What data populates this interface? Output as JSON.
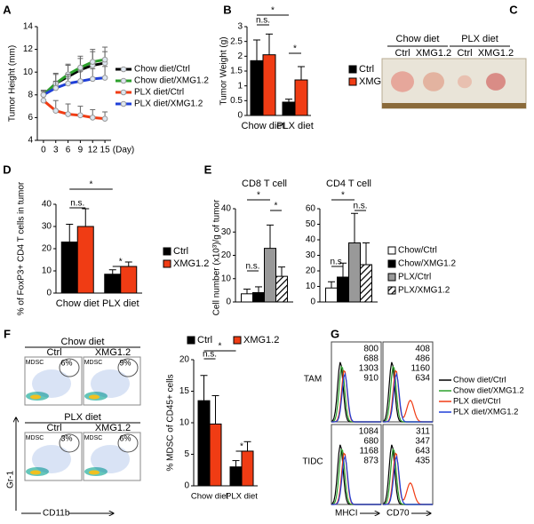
{
  "chart_data": [
    {
      "type": "line",
      "label": "A",
      "ylabel": "Tumor Height (mm)",
      "xlabel": "(Day)",
      "x": [
        0,
        3,
        6,
        9,
        12,
        15
      ],
      "xlim": [
        -1.5,
        16.5
      ],
      "xticks": [
        0,
        3,
        6,
        9,
        12,
        15
      ],
      "ylim": [
        4,
        14
      ],
      "yticks": [
        4,
        6,
        8,
        10,
        12,
        14
      ],
      "series": [
        {
          "name": "Chow diet/Ctrl",
          "color": "#000000",
          "values": [
            8.0,
            9.0,
            9.6,
            10.2,
            10.6,
            10.8
          ],
          "errors": [
            0.3,
            0.9,
            1.0,
            1.0,
            1.2,
            1.0
          ]
        },
        {
          "name": "Chow diet/XMG1.2",
          "color": "#2ca02c",
          "values": [
            8.0,
            9.0,
            9.8,
            10.4,
            10.9,
            11.1
          ],
          "errors": [
            0.4,
            0.8,
            0.9,
            1.0,
            1.1,
            1.1
          ]
        },
        {
          "name": "PLX diet/Ctrl",
          "color": "#f03c14",
          "values": [
            7.5,
            6.6,
            6.3,
            6.2,
            6.0,
            5.9
          ],
          "errors": [
            0.5,
            0.9,
            0.9,
            0.8,
            0.7,
            0.6
          ]
        },
        {
          "name": "PLX diet/XMG1.2",
          "color": "#1f3fd8",
          "values": [
            8.0,
            8.6,
            9.0,
            9.2,
            9.4,
            9.5
          ],
          "errors": [
            0.4,
            0.6,
            0.8,
            0.9,
            0.9,
            1.0
          ]
        }
      ]
    },
    {
      "type": "bar",
      "label": "B",
      "ylabel": "Tumor Weight (g)",
      "categories": [
        "Chow diet",
        "PLX diet"
      ],
      "ylim": [
        0,
        3
      ],
      "yticks": [
        0,
        0.5,
        1,
        1.5,
        2,
        2.5,
        3
      ],
      "series": [
        {
          "name": "Ctrl",
          "color": "#000000",
          "values": [
            1.85,
            0.45
          ],
          "errors": [
            0.7,
            0.1
          ]
        },
        {
          "name": "XMG1.2",
          "color": "#f03c14",
          "values": [
            2.05,
            1.2
          ],
          "errors": [
            0.7,
            0.45
          ]
        }
      ],
      "annotations": [
        "n.s.",
        "*",
        "*"
      ]
    },
    {
      "type": "bar",
      "label": "D",
      "ylabel": "% of FoxP3+ CD4 T cells in tumor",
      "categories": [
        "Chow diet",
        "PLX diet"
      ],
      "ylim": [
        0,
        40
      ],
      "yticks": [
        0,
        10,
        20,
        30,
        40
      ],
      "series": [
        {
          "name": "Ctrl",
          "color": "#000000",
          "values": [
            23,
            8.5
          ],
          "errors": [
            8,
            2
          ]
        },
        {
          "name": "XMG1.2",
          "color": "#f03c14",
          "values": [
            30,
            12
          ],
          "errors": [
            8,
            2
          ]
        }
      ],
      "annotations": [
        "n.s.",
        "*",
        "*"
      ]
    },
    {
      "type": "panel-bar",
      "label": "E",
      "ylabel": "Cell number (x10³)/g of tumor",
      "panels": [
        {
          "title": "CD8 T cell",
          "ylim": [
            0,
            40
          ],
          "yticks": [
            0,
            10,
            20,
            30,
            40
          ],
          "annotations": [
            "*",
            "*",
            "n.s."
          ]
        },
        {
          "title": "CD4 T cell",
          "ylim": [
            0,
            60
          ],
          "yticks": [
            0,
            10,
            20,
            30,
            40,
            50,
            60
          ],
          "annotations": [
            "*",
            "n.s.",
            "n.s."
          ]
        }
      ],
      "series": [
        {
          "name": "Chow/Ctrl",
          "color": "#ffffff",
          "values": [
            3.5,
            9
          ],
          "errors": [
            2,
            4
          ]
        },
        {
          "name": "Chow/XMG1.2",
          "color": "#000000",
          "values": [
            4,
            16
          ],
          "errors": [
            2.5,
            9
          ]
        },
        {
          "name": "PLX/Ctrl",
          "color": "#999999",
          "values": [
            23,
            38
          ],
          "errors": [
            10,
            19
          ]
        },
        {
          "name": "PLX/XMG1.2",
          "color": "#ffffff",
          "hatch": true,
          "values": [
            11,
            24
          ],
          "errors": [
            4,
            14
          ]
        }
      ]
    },
    {
      "type": "bar",
      "ylabel": "% MDSC of CD45+ cells",
      "categories": [
        "Chow diet",
        "PLX diet"
      ],
      "ylim": [
        0,
        20
      ],
      "yticks": [
        0,
        5,
        10,
        15,
        20
      ],
      "series": [
        {
          "name": "Ctrl",
          "color": "#000000",
          "values": [
            13.5,
            3
          ],
          "errors": [
            4,
            1
          ]
        },
        {
          "name": "XMG1.2",
          "color": "#f03c14",
          "values": [
            9.8,
            5.5
          ],
          "errors": [
            4.5,
            1.5
          ]
        }
      ],
      "annotations": [
        "n.s.",
        "*",
        "*"
      ]
    }
  ],
  "panel_c": {
    "label": "C",
    "groups": [
      "Chow diet",
      "PLX diet"
    ],
    "columns": [
      "Ctrl",
      "XMG1.2",
      "Ctrl",
      "XMG1.2"
    ]
  },
  "panel_f": {
    "label": "F",
    "y_axis": "Gr-1",
    "x_axis": "CD11b",
    "rows": [
      {
        "title": "Chow diet",
        "plots": [
          {
            "column": "Ctrl",
            "gate": "MDSC",
            "percent": "6%"
          },
          {
            "column": "XMG1.2",
            "gate": "MDSC",
            "percent": "9%"
          }
        ]
      },
      {
        "title": "PLX diet",
        "plots": [
          {
            "column": "Ctrl",
            "gate": "MDSC",
            "percent": "3%"
          },
          {
            "column": "XMG1.2",
            "gate": "MDSC",
            "percent": "6%"
          }
        ]
      }
    ]
  },
  "panel_g": {
    "label": "G",
    "rows": [
      "TAM",
      "TIDC"
    ],
    "columns": [
      "MHCI",
      "CD70"
    ],
    "series": [
      {
        "name": "Chow diet/Ctrl",
        "color": "#000000"
      },
      {
        "name": "Chow diet/XMG1.2",
        "color": "#2ca02c"
      },
      {
        "name": "PLX diet/Ctrl",
        "color": "#f03c14"
      },
      {
        "name": "PLX diet/XMG1.2",
        "color": "#1f3fd8"
      }
    ],
    "mfi": [
      [
        [
          800,
          688,
          1303,
          910
        ],
        [
          408,
          486,
          1160,
          634
        ]
      ],
      [
        [
          1084,
          680,
          1168,
          873
        ],
        [
          311,
          347,
          643,
          435
        ]
      ]
    ]
  }
}
